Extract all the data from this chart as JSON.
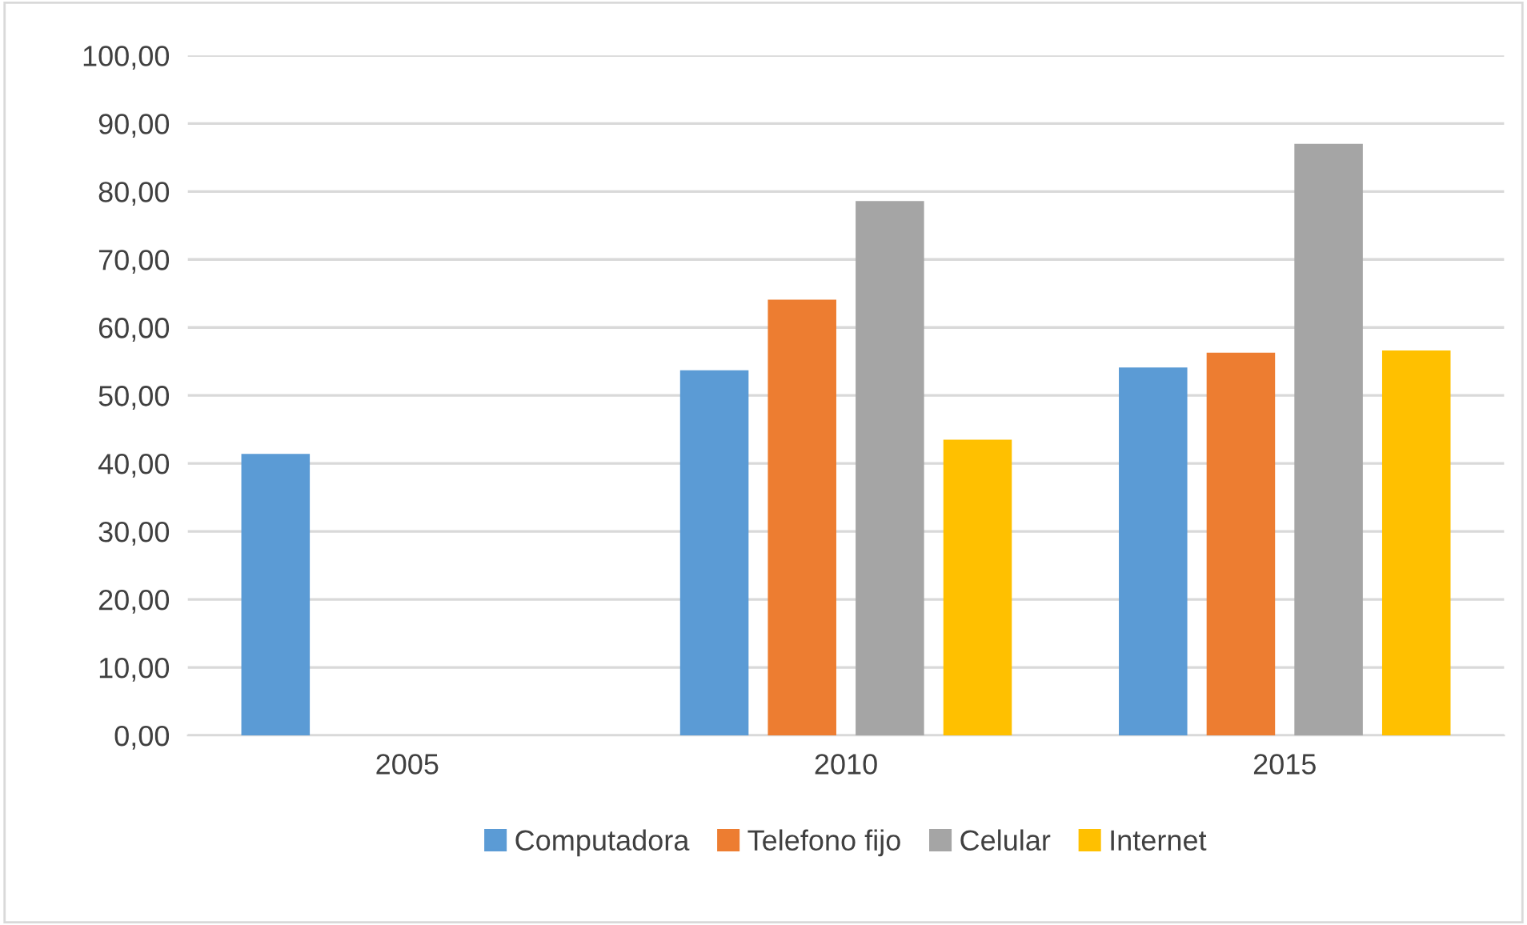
{
  "chart_data": {
    "type": "bar",
    "categories": [
      "2005",
      "2010",
      "2015"
    ],
    "series": [
      {
        "name": "Computadora",
        "color": "#5b9bd5",
        "values": [
          41.4,
          53.7,
          54.1
        ]
      },
      {
        "name": "Telefono fijo",
        "color": "#ed7d31",
        "values": [
          null,
          64.1,
          56.3
        ]
      },
      {
        "name": "Celular",
        "color": "#a5a5a5",
        "values": [
          null,
          78.6,
          87.0
        ]
      },
      {
        "name": "Internet",
        "color": "#ffc000",
        "values": [
          null,
          43.5,
          56.6
        ]
      }
    ],
    "ylim": [
      0,
      100
    ],
    "yticks": [
      {
        "value": 0,
        "label": "0,00"
      },
      {
        "value": 10,
        "label": "10,00"
      },
      {
        "value": 20,
        "label": "20,00"
      },
      {
        "value": 30,
        "label": "30,00"
      },
      {
        "value": 40,
        "label": "40,00"
      },
      {
        "value": 50,
        "label": "50,00"
      },
      {
        "value": 60,
        "label": "60,00"
      },
      {
        "value": 70,
        "label": "70,00"
      },
      {
        "value": 80,
        "label": "80,00"
      },
      {
        "value": 90,
        "label": "90,00"
      },
      {
        "value": 100,
        "label": "100,00"
      }
    ],
    "grid": "y",
    "legend": "bottom"
  }
}
